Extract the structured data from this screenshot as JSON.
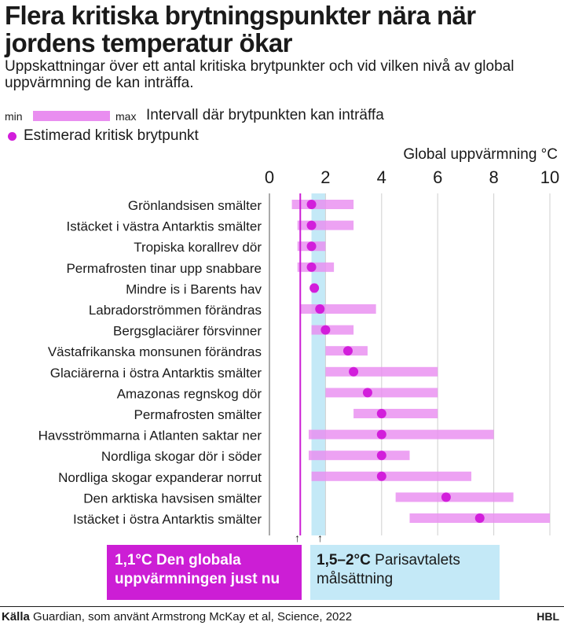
{
  "header": {
    "title": "Flera kritiska brytningspunkter nära när jordens temperatur ökar",
    "subtitle": "Uppskattningar över ett antal kritiska brytpunkter och vid vilken nivå av global uppvärmning de kan inträffa."
  },
  "legend": {
    "min_label": "min",
    "max_label": "max",
    "range_text": "Intervall där brytpunkten kan inträffa",
    "point_text": "Estimerad kritisk brytpunkt"
  },
  "chart_data": {
    "type": "range-dot",
    "xlabel": "Global uppvärmning °C",
    "xlim": [
      0,
      10
    ],
    "xticks": [
      "0",
      "2",
      "4",
      "6",
      "8",
      "10"
    ],
    "grid": true,
    "colors": {
      "range": "#e98ef0",
      "point": "#d21edb",
      "current": "#cc1ed5",
      "paris_band": "#c4e9f7"
    },
    "current_warming": 1.1,
    "paris_band": [
      1.5,
      2.0
    ],
    "categories": [
      "Grönlandsisen smälter",
      "Istäcket i västra Antarktis smälter",
      "Tropiska korallrev dör",
      "Permafrosten tinar upp snabbare",
      "Mindre is i Barents hav",
      "Labradorströmmen förändras",
      "Bergsglaciärer försvinner",
      "Västafrikanska monsunen förändras",
      "Glaciärerna i östra Antarktis smälter",
      "Amazonas regnskog dör",
      "Permafrosten smälter",
      "Havsströmmarna i Atlanten saktar ner",
      "Nordliga skogar dör i söder",
      "Nordliga skogar expanderar norrut",
      "Den arktiska havsisen smälter",
      "Istäcket i östra Antarktis smälter"
    ],
    "min": [
      0.8,
      1.0,
      1.0,
      1.0,
      1.5,
      1.1,
      1.5,
      2.0,
      2.0,
      2.0,
      3.0,
      1.4,
      1.4,
      1.5,
      4.5,
      5.0
    ],
    "max": [
      3.0,
      3.0,
      2.0,
      2.3,
      1.7,
      3.8,
      3.0,
      3.5,
      6.0,
      6.0,
      6.0,
      8.0,
      5.0,
      7.2,
      8.7,
      10.0
    ],
    "estimate": [
      1.5,
      1.5,
      1.5,
      1.5,
      1.6,
      1.8,
      2.0,
      2.8,
      3.0,
      3.5,
      4.0,
      4.0,
      4.0,
      4.0,
      6.3,
      7.5
    ]
  },
  "annotations": {
    "current": "1,1°C Den globala uppvärmningen just nu",
    "paris_value": "1,5–2°C",
    "paris_text": "Parisavtalets målsättning"
  },
  "footer": {
    "source_label": "Källa",
    "source_text": "Guardian, som använt Armstrong McKay et al, Science, 2022",
    "brand": "HBL"
  }
}
